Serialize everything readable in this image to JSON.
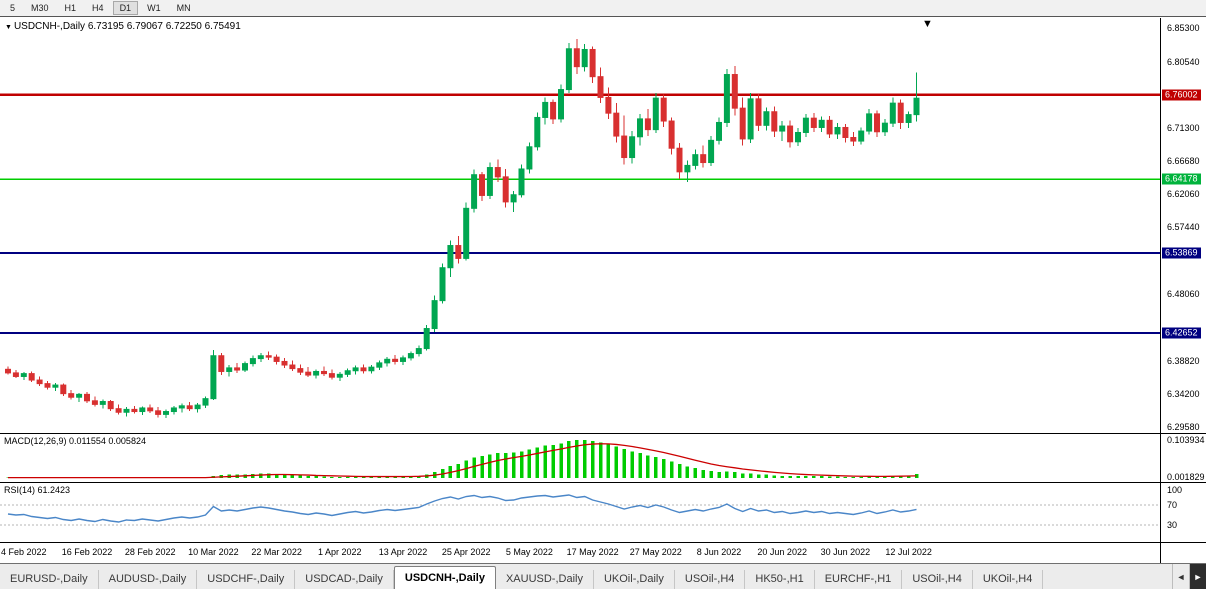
{
  "toolbar": {
    "timeframes": [
      "5",
      "M30",
      "H1",
      "H4",
      "D1",
      "W1",
      "MN"
    ],
    "active": "D1"
  },
  "chart": {
    "symbol_title": "USDCNH-,Daily",
    "ohlc_text": "6.73195 6.79067 6.72250 6.75491",
    "marker_glyph": "▼",
    "macd_label": "MACD(12,26,9)",
    "macd_values": "0.011554 0.005824",
    "rsi_label": "RSI(14)",
    "rsi_value": "61.2423"
  },
  "chart_data": {
    "type": "candlestick",
    "title": "USDCNH-,Daily",
    "ohlc_display": {
      "open": "6.73195",
      "high": "6.79067",
      "low": "6.72250",
      "close": "6.75491"
    },
    "price_range": {
      "min": 6.287,
      "max": 6.867
    },
    "price_ticks": [
      "6.85300",
      "6.80540",
      "6.71300",
      "6.66680",
      "6.62060",
      "6.57440",
      "6.48060",
      "6.38820",
      "6.34200",
      "6.29580"
    ],
    "levels": [
      {
        "price": 6.76002,
        "label": "6.76002",
        "color": "#c00000",
        "label_bg": "#c00000",
        "width": 2.5
      },
      {
        "price": 6.64178,
        "label": "6.64178",
        "color": "#00cc00",
        "label_bg": "#00b33c",
        "width": 1.6
      },
      {
        "price": 6.53869,
        "label": "6.53869",
        "color": "#000080",
        "label_bg": "#000080",
        "width": 2
      },
      {
        "price": 6.42652,
        "label": "6.42652",
        "color": "#000080",
        "label_bg": "#000080",
        "width": 2
      }
    ],
    "up_color": "#00a651",
    "down_color": "#d83030",
    "x_labels": [
      {
        "label": "4 Feb 2022",
        "idx": 2
      },
      {
        "label": "16 Feb 2022",
        "idx": 10
      },
      {
        "label": "28 Feb 2022",
        "idx": 18
      },
      {
        "label": "10 Mar 2022",
        "idx": 26
      },
      {
        "label": "22 Mar 2022",
        "idx": 34
      },
      {
        "label": "1 Apr 2022",
        "idx": 42
      },
      {
        "label": "13 Apr 2022",
        "idx": 50
      },
      {
        "label": "25 Apr 2022",
        "idx": 58
      },
      {
        "label": "5 May 2022",
        "idx": 66
      },
      {
        "label": "17 May 2022",
        "idx": 74
      },
      {
        "label": "27 May 2022",
        "idx": 82
      },
      {
        "label": "8 Jun 2022",
        "idx": 90
      },
      {
        "label": "20 Jun 2022",
        "idx": 98
      },
      {
        "label": "30 Jun 2022",
        "idx": 106
      },
      {
        "label": "12 Jul 2022",
        "idx": 114
      }
    ],
    "candles": [
      [
        6.376,
        6.38,
        6.369,
        6.371
      ],
      [
        6.371,
        6.375,
        6.364,
        6.366
      ],
      [
        6.366,
        6.372,
        6.361,
        6.37
      ],
      [
        6.37,
        6.373,
        6.358,
        6.361
      ],
      [
        6.361,
        6.366,
        6.353,
        6.356
      ],
      [
        6.356,
        6.36,
        6.348,
        6.351
      ],
      [
        6.351,
        6.357,
        6.346,
        6.354
      ],
      [
        6.354,
        6.356,
        6.339,
        6.342
      ],
      [
        6.342,
        6.347,
        6.334,
        6.337
      ],
      [
        6.337,
        6.343,
        6.33,
        6.341
      ],
      [
        6.341,
        6.344,
        6.329,
        6.332
      ],
      [
        6.332,
        6.338,
        6.324,
        6.327
      ],
      [
        6.327,
        6.334,
        6.321,
        6.331
      ],
      [
        6.331,
        6.333,
        6.318,
        6.321
      ],
      [
        6.321,
        6.327,
        6.313,
        6.316
      ],
      [
        6.316,
        6.323,
        6.31,
        6.32
      ],
      [
        6.32,
        6.325,
        6.314,
        6.317
      ],
      [
        6.317,
        6.324,
        6.312,
        6.322
      ],
      [
        6.322,
        6.327,
        6.315,
        6.318
      ],
      [
        6.318,
        6.323,
        6.309,
        6.313
      ],
      [
        6.313,
        6.32,
        6.308,
        6.317
      ],
      [
        6.317,
        6.325,
        6.313,
        6.322
      ],
      [
        6.322,
        6.328,
        6.316,
        6.325
      ],
      [
        6.325,
        6.33,
        6.318,
        6.321
      ],
      [
        6.321,
        6.329,
        6.316,
        6.326
      ],
      [
        6.326,
        6.338,
        6.322,
        6.335
      ],
      [
        6.335,
        6.403,
        6.333,
        6.395
      ],
      [
        6.395,
        6.399,
        6.368,
        6.373
      ],
      [
        6.373,
        6.382,
        6.366,
        6.378
      ],
      [
        6.378,
        6.385,
        6.371,
        6.375
      ],
      [
        6.375,
        6.387,
        6.372,
        6.384
      ],
      [
        6.384,
        6.395,
        6.38,
        6.391
      ],
      [
        6.391,
        6.399,
        6.386,
        6.395
      ],
      [
        6.395,
        6.401,
        6.389,
        6.393
      ],
      [
        6.393,
        6.397,
        6.383,
        6.387
      ],
      [
        6.387,
        6.392,
        6.378,
        6.382
      ],
      [
        6.382,
        6.388,
        6.374,
        6.377
      ],
      [
        6.377,
        6.383,
        6.368,
        6.372
      ],
      [
        6.372,
        6.379,
        6.365,
        6.368
      ],
      [
        6.368,
        6.376,
        6.363,
        6.373
      ],
      [
        6.373,
        6.38,
        6.367,
        6.37
      ],
      [
        6.37,
        6.376,
        6.362,
        6.365
      ],
      [
        6.365,
        6.372,
        6.36,
        6.369
      ],
      [
        6.369,
        6.377,
        6.365,
        6.374
      ],
      [
        6.374,
        6.381,
        6.369,
        6.378
      ],
      [
        6.378,
        6.383,
        6.37,
        6.374
      ],
      [
        6.374,
        6.382,
        6.37,
        6.379
      ],
      [
        6.379,
        6.388,
        6.375,
        6.385
      ],
      [
        6.385,
        6.393,
        6.38,
        6.39
      ],
      [
        6.39,
        6.396,
        6.383,
        6.387
      ],
      [
        6.387,
        6.395,
        6.382,
        6.392
      ],
      [
        6.392,
        6.401,
        6.388,
        6.398
      ],
      [
        6.398,
        6.409,
        6.394,
        6.405
      ],
      [
        6.405,
        6.438,
        6.402,
        6.433
      ],
      [
        6.433,
        6.479,
        6.428,
        6.472
      ],
      [
        6.472,
        6.524,
        6.468,
        6.518
      ],
      [
        6.518,
        6.556,
        6.505,
        6.549
      ],
      [
        6.549,
        6.562,
        6.524,
        6.531
      ],
      [
        6.531,
        6.609,
        6.528,
        6.601
      ],
      [
        6.601,
        6.655,
        6.595,
        6.648
      ],
      [
        6.648,
        6.652,
        6.611,
        6.619
      ],
      [
        6.619,
        6.665,
        6.614,
        6.658
      ],
      [
        6.658,
        6.669,
        6.638,
        6.645
      ],
      [
        6.645,
        6.656,
        6.602,
        6.61
      ],
      [
        6.61,
        6.625,
        6.596,
        6.62
      ],
      [
        6.62,
        6.662,
        6.616,
        6.656
      ],
      [
        6.656,
        6.693,
        6.65,
        6.687
      ],
      [
        6.687,
        6.735,
        6.682,
        6.728
      ],
      [
        6.728,
        6.756,
        6.718,
        6.749
      ],
      [
        6.749,
        6.753,
        6.719,
        6.726
      ],
      [
        6.726,
        6.774,
        6.721,
        6.767
      ],
      [
        6.767,
        6.832,
        6.762,
        6.824
      ],
      [
        6.824,
        6.838,
        6.789,
        6.799
      ],
      [
        6.799,
        6.831,
        6.792,
        6.823
      ],
      [
        6.823,
        6.827,
        6.776,
        6.785
      ],
      [
        6.785,
        6.798,
        6.748,
        6.756
      ],
      [
        6.756,
        6.77,
        6.726,
        6.734
      ],
      [
        6.734,
        6.748,
        6.693,
        6.702
      ],
      [
        6.702,
        6.731,
        6.662,
        6.672
      ],
      [
        6.672,
        6.709,
        6.664,
        6.701
      ],
      [
        6.701,
        6.733,
        6.689,
        6.726
      ],
      [
        6.726,
        6.74,
        6.702,
        6.711
      ],
      [
        6.711,
        6.762,
        6.706,
        6.755
      ],
      [
        6.755,
        6.76,
        6.715,
        6.723
      ],
      [
        6.723,
        6.728,
        6.676,
        6.685
      ],
      [
        6.685,
        6.692,
        6.642,
        6.652
      ],
      [
        6.652,
        6.668,
        6.638,
        6.661
      ],
      [
        6.661,
        6.683,
        6.655,
        6.676
      ],
      [
        6.676,
        6.689,
        6.658,
        6.665
      ],
      [
        6.665,
        6.702,
        6.66,
        6.696
      ],
      [
        6.696,
        6.728,
        6.69,
        6.721
      ],
      [
        6.721,
        6.796,
        6.715,
        6.788
      ],
      [
        6.788,
        6.8,
        6.731,
        6.741
      ],
      [
        6.741,
        6.756,
        6.689,
        6.698
      ],
      [
        6.698,
        6.762,
        6.692,
        6.754
      ],
      [
        6.754,
        6.761,
        6.709,
        6.717
      ],
      [
        6.717,
        6.742,
        6.71,
        6.736
      ],
      [
        6.736,
        6.743,
        6.701,
        6.709
      ],
      [
        6.709,
        6.723,
        6.695,
        6.716
      ],
      [
        6.716,
        6.724,
        6.686,
        6.694
      ],
      [
        6.694,
        6.713,
        6.688,
        6.707
      ],
      [
        6.707,
        6.733,
        6.701,
        6.727
      ],
      [
        6.727,
        6.734,
        6.708,
        6.714
      ],
      [
        6.714,
        6.729,
        6.708,
        6.724
      ],
      [
        6.724,
        6.73,
        6.699,
        6.705
      ],
      [
        6.705,
        6.72,
        6.698,
        6.714
      ],
      [
        6.714,
        6.719,
        6.693,
        6.7
      ],
      [
        6.7,
        6.708,
        6.688,
        6.695
      ],
      [
        6.695,
        6.714,
        6.69,
        6.709
      ],
      [
        6.709,
        6.74,
        6.704,
        6.733
      ],
      [
        6.733,
        6.738,
        6.701,
        6.708
      ],
      [
        6.708,
        6.726,
        6.702,
        6.72
      ],
      [
        6.72,
        6.756,
        6.715,
        6.748
      ],
      [
        6.748,
        6.753,
        6.712,
        6.721
      ],
      [
        6.721,
        6.736,
        6.713,
        6.732
      ],
      [
        6.73195,
        6.79067,
        6.7225,
        6.75491
      ]
    ],
    "macd": {
      "label": "MACD(12,26,9)",
      "value_main": "0.011554",
      "value_signal": "0.005824",
      "max": 0.104,
      "axis_labels": [
        "0.103934",
        "0.001829"
      ],
      "hist_color": "#00cc00",
      "signal_color": "#cc0000",
      "histogram": [
        0.001,
        0.001,
        0.0,
        0.0,
        0.0,
        0.0,
        0.0,
        0.0,
        0.0,
        0.0,
        0.0,
        0.0,
        0.0,
        0.0,
        0.0,
        0.0,
        0.0,
        0.0,
        0.0,
        0.0,
        0.0,
        0.001,
        0.001,
        0.001,
        0.001,
        0.002,
        0.006,
        0.008,
        0.009,
        0.009,
        0.01,
        0.011,
        0.012,
        0.012,
        0.011,
        0.01,
        0.009,
        0.008,
        0.006,
        0.005,
        0.004,
        0.003,
        0.003,
        0.003,
        0.003,
        0.003,
        0.003,
        0.004,
        0.004,
        0.004,
        0.004,
        0.005,
        0.006,
        0.01,
        0.016,
        0.024,
        0.033,
        0.039,
        0.048,
        0.056,
        0.06,
        0.065,
        0.068,
        0.069,
        0.07,
        0.073,
        0.078,
        0.084,
        0.089,
        0.091,
        0.095,
        0.101,
        0.1039,
        0.1035,
        0.101,
        0.097,
        0.092,
        0.086,
        0.079,
        0.073,
        0.068,
        0.062,
        0.058,
        0.052,
        0.045,
        0.038,
        0.032,
        0.027,
        0.022,
        0.019,
        0.017,
        0.018,
        0.016,
        0.012,
        0.012,
        0.01,
        0.009,
        0.007,
        0.006,
        0.005,
        0.005,
        0.005,
        0.005,
        0.005,
        0.004,
        0.004,
        0.003,
        0.003,
        0.003,
        0.004,
        0.004,
        0.004,
        0.006,
        0.006,
        0.007,
        0.0116
      ],
      "signal": [
        0.001,
        0.001,
        0.001,
        0.001,
        0.001,
        0.001,
        0.001,
        0.001,
        0.001,
        0.001,
        0.001,
        0.001,
        0.001,
        0.001,
        0.001,
        0.001,
        0.001,
        0.001,
        0.001,
        0.001,
        0.001,
        0.001,
        0.001,
        0.001,
        0.001,
        0.001,
        0.002,
        0.003,
        0.004,
        0.005,
        0.006,
        0.007,
        0.008,
        0.009,
        0.0095,
        0.0095,
        0.009,
        0.0085,
        0.008,
        0.007,
        0.0065,
        0.006,
        0.0055,
        0.005,
        0.0045,
        0.004,
        0.004,
        0.004,
        0.004,
        0.004,
        0.004,
        0.0042,
        0.0046,
        0.0057,
        0.0078,
        0.011,
        0.0154,
        0.0201,
        0.0257,
        0.0318,
        0.0374,
        0.0429,
        0.0479,
        0.0521,
        0.0557,
        0.0592,
        0.063,
        0.0672,
        0.0716,
        0.0755,
        0.0794,
        0.0837,
        0.0877,
        0.0909,
        0.0929,
        0.0937,
        0.0934,
        0.0919,
        0.0893,
        0.0861,
        0.0825,
        0.0784,
        0.0743,
        0.0698,
        0.0648,
        0.0595,
        0.054,
        0.0486,
        0.0433,
        0.0384,
        0.0341,
        0.0309,
        0.0279,
        0.0247,
        0.0222,
        0.0198,
        0.0176,
        0.0155,
        0.0136,
        0.0119,
        0.0105,
        0.0094,
        0.0085,
        0.0078,
        0.007,
        0.0064,
        0.0057,
        0.0052,
        0.0048,
        0.0046,
        0.0045,
        0.0044,
        0.0047,
        0.005,
        0.0054,
        0.0058
      ]
    },
    "rsi": {
      "label": "RSI(14)",
      "value": "61.2423",
      "axis_labels": [
        "100",
        "70",
        "30"
      ],
      "guide_levels": [
        70,
        30
      ],
      "line_color": "#4a86c8",
      "series": [
        52,
        50,
        51,
        47,
        45,
        43,
        45,
        41,
        39,
        42,
        39,
        37,
        41,
        38,
        36,
        40,
        39,
        42,
        40,
        38,
        41,
        44,
        46,
        44,
        46,
        50,
        67,
        58,
        60,
        58,
        61,
        64,
        66,
        64,
        61,
        58,
        56,
        53,
        51,
        54,
        52,
        49,
        52,
        55,
        57,
        54,
        56,
        59,
        61,
        59,
        61,
        63,
        65,
        72,
        78,
        83,
        86,
        82,
        87,
        89,
        85,
        87,
        84,
        79,
        80,
        84,
        86,
        88,
        89,
        86,
        88,
        90,
        85,
        87,
        80,
        76,
        72,
        67,
        62,
        66,
        69,
        65,
        70,
        66,
        60,
        55,
        58,
        61,
        58,
        62,
        65,
        72,
        63,
        57,
        63,
        58,
        60,
        55,
        57,
        53,
        55,
        58,
        55,
        57,
        53,
        55,
        53,
        51,
        54,
        58,
        53,
        56,
        60,
        56,
        58,
        61.24
      ]
    }
  },
  "tabs": [
    {
      "label": "EURUSD-,Daily",
      "active": false
    },
    {
      "label": "AUDUSD-,Daily",
      "active": false
    },
    {
      "label": "USDCHF-,Daily",
      "active": false
    },
    {
      "label": "USDCAD-,Daily",
      "active": false
    },
    {
      "label": "USDCNH-,Daily",
      "active": true
    },
    {
      "label": "XAUUSD-,Daily",
      "active": false
    },
    {
      "label": "UKOil-,Daily",
      "active": false
    },
    {
      "label": "USOil-,H4",
      "active": false
    },
    {
      "label": "HK50-,H1",
      "active": false
    },
    {
      "label": "EURCHF-,H1",
      "active": false
    },
    {
      "label": "USOil-,H4",
      "active": false
    },
    {
      "label": "UKOil-,H4",
      "active": false
    }
  ],
  "tab_bar": {
    "scroll_left": "◄",
    "scroll_right": "►"
  }
}
